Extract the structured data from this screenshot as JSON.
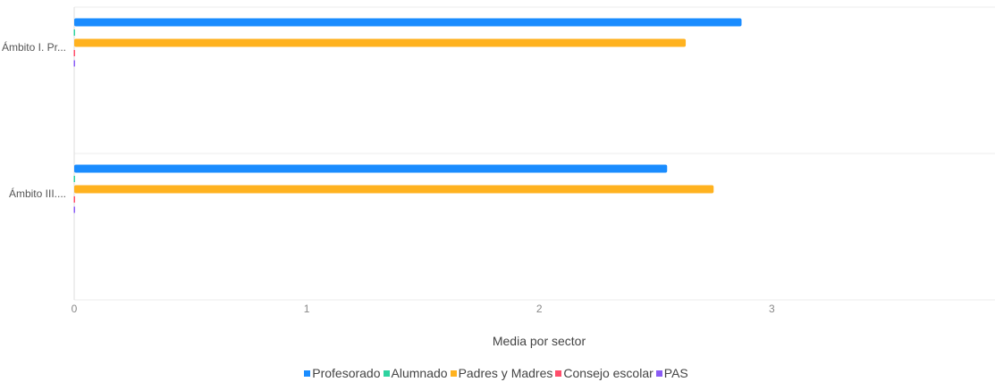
{
  "chart_data": {
    "type": "bar",
    "orientation": "horizontal",
    "title": "",
    "xlabel": "Media por sector",
    "ylabel": "",
    "categories": [
      "Ámbito I. Pr...",
      "Ámbito III...."
    ],
    "xlim": [
      0,
      3.96
    ],
    "x_ticks": [
      "0",
      "1",
      "2",
      "3"
    ],
    "grid": true,
    "legend_position": "bottom",
    "series": [
      {
        "name": "Profesorado",
        "color": "#1a8cff",
        "values": [
          2.87,
          2.55
        ]
      },
      {
        "name": "Alumnado",
        "color": "#2ed3a0",
        "values": [
          0,
          0
        ]
      },
      {
        "name": "Padres y Madres",
        "color": "#ffb21f",
        "values": [
          2.63,
          2.75
        ]
      },
      {
        "name": "Consejo escolar",
        "color": "#ff4d6a",
        "values": [
          0,
          0
        ]
      },
      {
        "name": "PAS",
        "color": "#8a5cf5",
        "values": [
          0,
          0
        ]
      }
    ]
  }
}
